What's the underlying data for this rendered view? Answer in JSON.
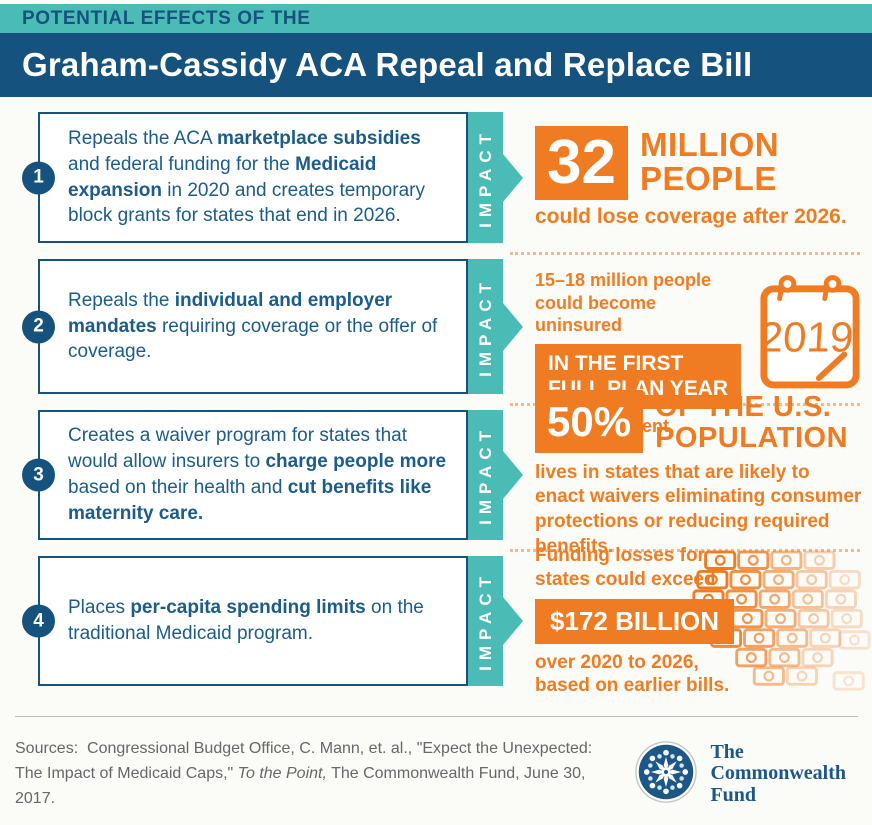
{
  "header": {
    "kicker": "POTENTIAL EFFECTS OF THE",
    "title": "Graham-Cassidy ACA Repeal and Replace Bill"
  },
  "ribbon": {
    "label": "IMPACT"
  },
  "items": [
    {
      "number": "1",
      "description": [
        {
          "text": "Repeals the ACA "
        },
        {
          "text": "marketplace subsidies",
          "bold": true
        },
        {
          "text": " and federal funding for the "
        },
        {
          "text": "Medicaid expansion",
          "bold": true
        },
        {
          "text": " in 2020 and creates temporary block grants for states that end in 2026."
        }
      ],
      "impact": {
        "stat_value": "32",
        "stat_label_line1": "MILLION",
        "stat_label_line2": "PEOPLE",
        "caption": "could lose coverage after 2026."
      }
    },
    {
      "number": "2",
      "description": [
        {
          "text": "Repeals the "
        },
        {
          "text": "individual and employer mandates",
          "bold": true
        },
        {
          "text": " requiring coverage or the offer of coverage."
        }
      ],
      "impact": {
        "lead_line1": "15–18 million people",
        "lead_line2": "could become uninsured",
        "banner_line1": "IN THE FIRST",
        "banner_line2": "FULL PLAN YEAR",
        "caption": "after enactment.",
        "calendar_year": "2019"
      }
    },
    {
      "number": "3",
      "description": [
        {
          "text": "Creates a waiver program for states that would allow insurers to "
        },
        {
          "text": "charge people more",
          "bold": true
        },
        {
          "text": " based on their health and "
        },
        {
          "text": "cut benefits like maternity care.",
          "bold": true
        }
      ],
      "impact": {
        "stat_value": "50%",
        "stat_label_line1": "OF THE U.S.",
        "stat_label_line2": "POPULATION",
        "caption": "lives in states that are likely to enact waivers eliminating consumer protections or reducing required benefits."
      }
    },
    {
      "number": "4",
      "description": [
        {
          "text": "Places "
        },
        {
          "text": "per-capita spending limits",
          "bold": true
        },
        {
          "text": " on the traditional Medicaid program."
        }
      ],
      "impact": {
        "lead_line1": "Funding losses for",
        "lead_line2": "states could exceed",
        "banner": "$172 BILLION",
        "caption_line1": "over 2020 to 2026,",
        "caption_line2": "based on earlier bills."
      }
    }
  ],
  "footer": {
    "sources": [
      {
        "text": "Sources:  Congressional Budget Office, C. Mann, et. al., \"Expect the Unexpected: The Impact of Medicaid Caps,\" "
      },
      {
        "text": "To the Point,",
        "italic": true
      },
      {
        "text": " The Commonwealth Fund, June 30, 2017."
      }
    ],
    "logo": {
      "line1": "The",
      "line2": "Commonwealth",
      "line3": "Fund"
    }
  },
  "icons": {
    "calendar": "calendar-icon",
    "money_map": "money-map-graphic",
    "logo_mark": "commonwealth-fund-logo-mark"
  },
  "colors": {
    "teal": "#4BBCB5",
    "navy": "#15527E",
    "orange": "#EF7C23",
    "text_navy": "#1B5C8C"
  }
}
